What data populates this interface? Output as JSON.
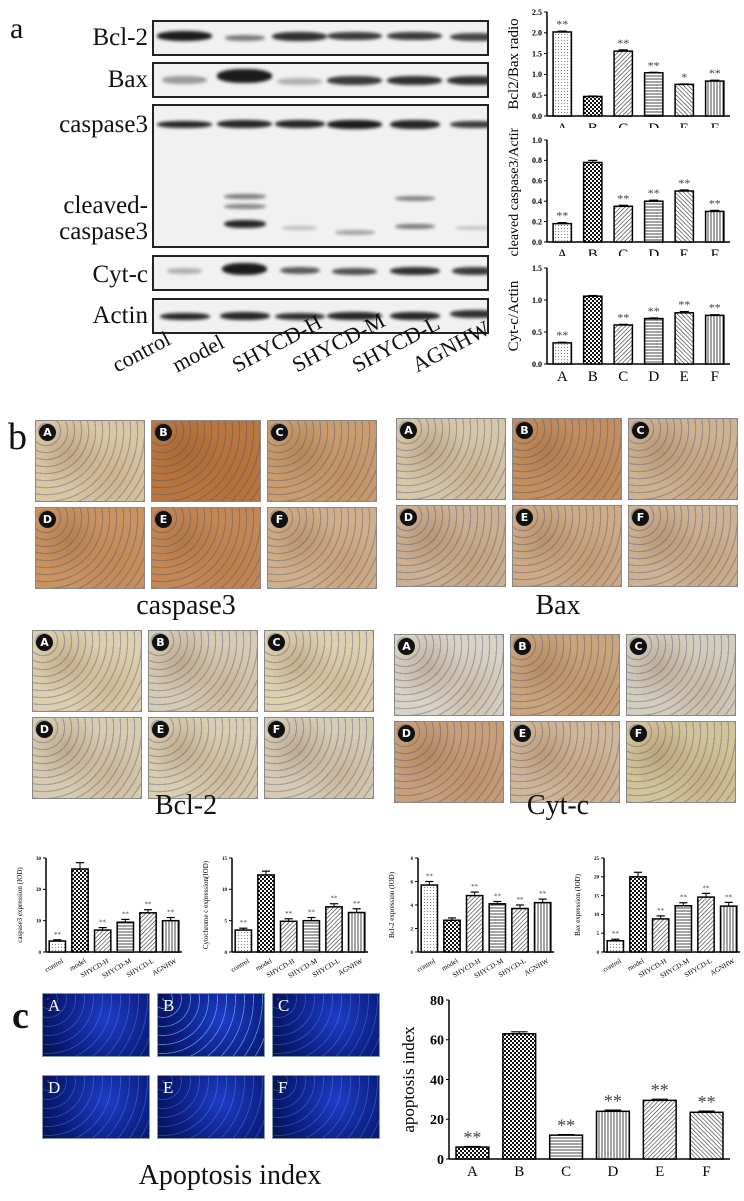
{
  "panels": {
    "a": {
      "letter": "a",
      "blot_labels": [
        "Bcl-2",
        "Bax",
        "caspase3",
        "cleaved-",
        "caspase3",
        "Cyt-c",
        "Actin"
      ],
      "lanes": [
        "control",
        "model",
        "SHYCD-H",
        "SHYCD-M",
        "SHYCD-L",
        "AGNHW"
      ]
    },
    "b": {
      "letter": "b",
      "ihc_groups": [
        {
          "caption": "caspase3",
          "tiles": [
            "A",
            "B",
            "C",
            "D",
            "E",
            "F"
          ]
        },
        {
          "caption": "Bax",
          "tiles": [
            "A",
            "B",
            "C",
            "D",
            "E",
            "F"
          ]
        },
        {
          "caption": "Bcl-2",
          "tiles": [
            "A",
            "B",
            "C",
            "D",
            "E",
            "F"
          ]
        },
        {
          "caption": "Cyt-c",
          "tiles": [
            "A",
            "B",
            "C",
            "D",
            "E",
            "F"
          ]
        }
      ]
    },
    "c": {
      "letter": "c",
      "tiles": [
        "A",
        "B",
        "C",
        "D",
        "E",
        "F"
      ],
      "caption": "Apoptosis index"
    }
  },
  "chart_data": [
    {
      "id": "bcl2-bax-ratio",
      "type": "bar",
      "title": "",
      "xlabel": "",
      "ylabel": "Bcl2/Bax radio",
      "categories": [
        "A",
        "B",
        "C",
        "D",
        "E",
        "F"
      ],
      "values": [
        2.02,
        0.47,
        1.56,
        1.04,
        0.76,
        0.84
      ],
      "errors": [
        0.02,
        0.01,
        0.03,
        0.01,
        0.01,
        0.02
      ],
      "significance": [
        "**",
        "",
        "**",
        "**",
        "*",
        "**"
      ],
      "ylim": [
        0,
        2.5
      ],
      "yticks": [
        0.0,
        0.5,
        1.0,
        1.5,
        2.0,
        2.5
      ]
    },
    {
      "id": "cleaved-caspase3-actin",
      "type": "bar",
      "ylabel": "cleaved caspase3/Actin",
      "categories": [
        "A",
        "B",
        "C",
        "D",
        "E",
        "F"
      ],
      "values": [
        0.18,
        0.78,
        0.35,
        0.4,
        0.5,
        0.3
      ],
      "errors": [
        0.01,
        0.02,
        0.01,
        0.01,
        0.01,
        0.01
      ],
      "significance": [
        "**",
        "",
        "**",
        "**",
        "**",
        "**"
      ],
      "ylim": [
        0,
        1.0
      ],
      "yticks": [
        0.0,
        0.2,
        0.4,
        0.6,
        0.8,
        1.0
      ]
    },
    {
      "id": "cytc-actin",
      "type": "bar",
      "ylabel": "Cyt-c/Actin",
      "categories": [
        "A",
        "B",
        "C",
        "D",
        "E",
        "F"
      ],
      "values": [
        0.33,
        1.06,
        0.61,
        0.71,
        0.8,
        0.76
      ],
      "errors": [
        0.01,
        0.01,
        0.01,
        0.01,
        0.02,
        0.01
      ],
      "significance": [
        "**",
        "",
        "**",
        "**",
        "**",
        "**"
      ],
      "ylim": [
        0,
        1.5
      ],
      "yticks": [
        0.0,
        0.5,
        1.0,
        1.5
      ]
    },
    {
      "id": "caspase3-iod",
      "type": "bar",
      "ylabel": "caspase3 expression (IOD)",
      "categories": [
        "control",
        "model",
        "SHYCD-H",
        "SHYCD-M",
        "SHYCD-L",
        "AGNHW"
      ],
      "values": [
        3.5,
        26.5,
        7.0,
        9.5,
        12.5,
        10.0
      ],
      "errors": [
        0.4,
        2.0,
        0.8,
        0.9,
        1.0,
        1.0
      ],
      "significance": [
        "**",
        "",
        "**",
        "**",
        "**",
        "**"
      ],
      "ylim": [
        0,
        30
      ],
      "yticks": [
        0,
        10,
        20,
        30
      ]
    },
    {
      "id": "cytochrome-c-iod",
      "type": "bar",
      "ylabel": "Cytochrome c expression(IOD)",
      "categories": [
        "control",
        "model",
        "SHYCD-H",
        "SHYCD-M",
        "SHYCD-L",
        "AGNHW"
      ],
      "values": [
        3.5,
        12.3,
        4.9,
        5.0,
        7.2,
        6.3
      ],
      "errors": [
        0.3,
        0.6,
        0.4,
        0.5,
        0.5,
        0.6
      ],
      "significance": [
        "**",
        "",
        "**",
        "**",
        "**",
        "**"
      ],
      "ylim": [
        0,
        15
      ],
      "yticks": [
        0,
        5,
        10,
        15
      ]
    },
    {
      "id": "bcl2-iod",
      "type": "bar",
      "ylabel": "Bcl-2 expression (IOD)",
      "categories": [
        "control",
        "model",
        "SHYCD-H",
        "SHYCD-M",
        "SHYCD-L",
        "AGNHW"
      ],
      "values": [
        5.7,
        2.7,
        4.8,
        4.1,
        3.7,
        4.2
      ],
      "errors": [
        0.3,
        0.2,
        0.3,
        0.2,
        0.3,
        0.3
      ],
      "significance": [
        "**",
        "",
        "**",
        "**",
        "**",
        "**"
      ],
      "ylim": [
        0,
        8
      ],
      "yticks": [
        0,
        2,
        4,
        6,
        8
      ]
    },
    {
      "id": "bax-iod",
      "type": "bar",
      "ylabel": "Bax expression (IOD)",
      "categories": [
        "control",
        "model",
        "SHYCD-H",
        "SHYCD-M",
        "SHYCD-L",
        "AGNHW"
      ],
      "values": [
        3.0,
        20.0,
        8.8,
        12.3,
        14.6,
        12.2
      ],
      "errors": [
        0.4,
        1.2,
        0.8,
        0.8,
        1.0,
        1.0
      ],
      "significance": [
        "**",
        "",
        "**",
        "**",
        "**",
        "**"
      ],
      "ylim": [
        0,
        25
      ],
      "yticks": [
        0,
        5,
        10,
        15,
        20,
        25
      ]
    },
    {
      "id": "apoptosis-index",
      "type": "bar",
      "ylabel": "apoptosis index",
      "categories": [
        "A",
        "B",
        "C",
        "D",
        "E",
        "F"
      ],
      "values": [
        6,
        63,
        12,
        24,
        29.5,
        23.5
      ],
      "errors": [
        0.3,
        1.0,
        0.3,
        0.6,
        0.6,
        0.6
      ],
      "significance": [
        "**",
        "",
        "**",
        "**",
        "**",
        "**"
      ],
      "ylim": [
        0,
        80
      ],
      "yticks": [
        0,
        20,
        40,
        60,
        80
      ]
    }
  ]
}
